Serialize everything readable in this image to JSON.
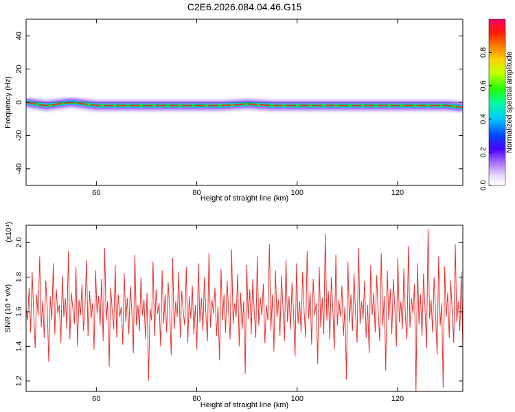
{
  "title": "C2E6.2026.084.04.46.G15",
  "colors": {
    "snr_line": "#e8302e",
    "band_core": "#e8304a",
    "band_edge": "#7a2cff",
    "band_glow": "#d7c4ff",
    "frame": "#000000"
  },
  "chart_data": [
    {
      "type": "heatmap",
      "xlabel": "Height of straight line (km)",
      "ylabel": "Frequency (Hz)",
      "xlim": [
        46,
        133
      ],
      "ylim": [
        -50,
        50
      ],
      "xticks": [
        "60",
        "80",
        "100",
        "120"
      ],
      "yticks": [
        "-40",
        "-20",
        "0",
        "20",
        "40"
      ],
      "colorbar": {
        "label": "Normalized spectral amplitude",
        "range": [
          0,
          1
        ],
        "ticks": [
          "0.0",
          "0.2",
          "0.4",
          "0.6",
          "0.8"
        ]
      },
      "ridge": {
        "x": [
          46,
          50,
          55,
          60,
          65,
          70,
          75,
          80,
          85,
          90,
          95,
          100,
          105,
          110,
          115,
          120,
          125,
          130,
          133
        ],
        "frequency": [
          0,
          -2,
          0,
          -2,
          -2,
          -2,
          -2,
          -2,
          -2,
          -1,
          -2,
          -2,
          -2,
          -2,
          -2,
          -2,
          -2,
          -2,
          -3
        ]
      }
    },
    {
      "type": "line",
      "xlabel": "Height of straight line (km)",
      "ylabel": "SNR (10 * v/v)",
      "y_multiplier": "(x10⁴)",
      "xlim": [
        46,
        133
      ],
      "ylim": [
        1.14,
        2.1
      ],
      "xticks": [
        "60",
        "80",
        "100",
        "120"
      ],
      "yticks": [
        "1.2",
        "1.4",
        "1.6",
        "1.8",
        "2.0"
      ],
      "series": [
        {
          "x_start": 46,
          "x_end": 133,
          "values": [
            1.62,
            1.55,
            1.74,
            1.48,
            1.83,
            1.6,
            1.39,
            1.7,
            1.58,
            1.92,
            1.51,
            1.66,
            1.45,
            1.78,
            1.62,
            1.31,
            1.69,
            1.55,
            1.88,
            1.47,
            1.73,
            1.59,
            1.64,
            1.42,
            1.81,
            1.57,
            1.68,
            1.5,
            1.95,
            1.44,
            1.71,
            1.61,
            1.53,
            1.86,
            1.4,
            1.67,
            1.58,
            1.76,
            1.49,
            1.63,
            1.9,
            1.46,
            1.72,
            1.56,
            1.65,
            1.38,
            1.84,
            1.59,
            1.69,
            1.52,
            1.79,
            1.43,
            1.97,
            1.55,
            1.66,
            1.28,
            1.74,
            1.61,
            1.5,
            1.87,
            1.45,
            1.7,
            1.57,
            1.63,
            1.41,
            1.82,
            1.54,
            1.68,
            1.47,
            1.75,
            1.6,
            1.36,
            1.93,
            1.52,
            1.64,
            1.49,
            1.8,
            1.58,
            1.67,
            1.44,
            1.71,
            1.2,
            1.62,
            1.55,
            1.89,
            1.46,
            1.73,
            1.59,
            1.65,
            1.4,
            1.84,
            1.53,
            1.7,
            1.48,
            1.77,
            1.61,
            1.35,
            1.91,
            1.5,
            1.66,
            1.57,
            1.83,
            1.45,
            1.72,
            1.6,
            1.52,
            1.86,
            1.42,
            1.69,
            1.56,
            1.75,
            1.47,
            1.64,
            1.38,
            1.88,
            1.54,
            1.68,
            1.49,
            1.8,
            1.58,
            1.43,
            1.94,
            1.51,
            1.67,
            1.59,
            1.74,
            1.46,
            1.63,
            1.32,
            1.85,
            1.55,
            1.7,
            1.48,
            1.78,
            1.61,
            1.44,
            1.96,
            1.53,
            1.65,
            1.57,
            1.82,
            1.4,
            1.71,
            1.5,
            1.66,
            1.24,
            1.87,
            1.56,
            1.73,
            1.47,
            1.79,
            1.6,
            1.45,
            1.92,
            1.52,
            1.68,
            1.58,
            1.76,
            1.42,
            1.64,
            1.55,
            1.99,
            1.49,
            1.7,
            1.37,
            1.84,
            1.57,
            1.67,
            1.46,
            1.81,
            1.62,
            1.43,
            1.9,
            1.54,
            1.69,
            1.5,
            1.77,
            1.59,
            1.34,
            1.88,
            1.53,
            1.66,
            1.48,
            1.83,
            1.6,
            1.45,
            1.95,
            1.56,
            1.71,
            1.41,
            1.79,
            1.58,
            1.65,
            1.3,
            1.86,
            1.51,
            1.68,
            1.47,
            2.05,
            1.55,
            1.72,
            1.44,
            1.8,
            1.61,
            1.38,
            1.93,
            1.52,
            1.67,
            1.57,
            1.75,
            1.46,
            1.63,
            1.21,
            1.89,
            1.54,
            1.7,
            1.49,
            1.82,
            1.59,
            1.42,
            1.97,
            1.53,
            1.66,
            1.56,
            1.78,
            1.45,
            1.64,
            1.36,
            1.87,
            1.58,
            1.71,
            1.48,
            1.81,
            1.6,
            1.43,
            1.94,
            1.52,
            1.69,
            1.26,
            1.84,
            1.55,
            1.73,
            1.47,
            1.79,
            1.62,
            1.4,
            1.91,
            1.54,
            1.66,
            1.5,
            1.85,
            1.57,
            1.44,
            1.98,
            1.51,
            1.68,
            1.59,
            1.76,
            1.13,
            1.88,
            1.53,
            1.7,
            1.46,
            1.82,
            1.61,
            1.39,
            2.08,
            1.56,
            1.67,
            1.48,
            1.8,
            1.58,
            1.35,
            1.92,
            1.52,
            1.65,
            1.16,
            1.86,
            1.57,
            1.71,
            1.45,
            1.78,
            1.6,
            1.42,
            1.99,
            1.54,
            1.66,
            1.49,
            1.83,
            1.4
          ]
        }
      ]
    }
  ]
}
